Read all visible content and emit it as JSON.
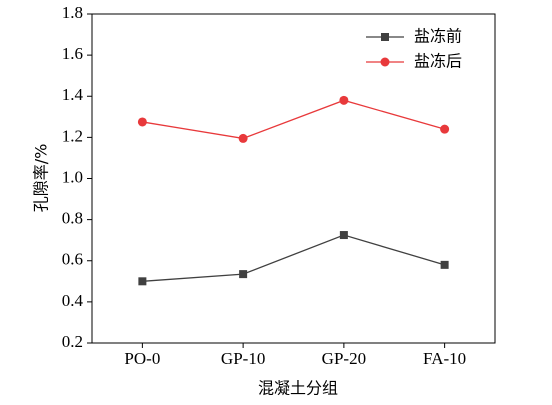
{
  "chart_data": {
    "type": "line",
    "x_label": "混凝土分组",
    "y_label": "孔隙率/%",
    "categories": [
      "PO-0",
      "GP-10",
      "GP-20",
      "FA-10"
    ],
    "series": [
      {
        "name": "盐冻前",
        "color": "#404040",
        "marker": "square",
        "values": [
          0.5,
          0.535,
          0.725,
          0.58
        ]
      },
      {
        "name": "盐冻后",
        "color": "#e8393b",
        "marker": "circle",
        "values": [
          1.275,
          1.195,
          1.38,
          1.24
        ]
      }
    ],
    "ylim": [
      0.2,
      1.8
    ],
    "yticks": [
      0.2,
      0.4,
      0.6,
      0.8,
      {
        "value": 1,
        "label": "1.0"
      },
      1.2,
      1.4,
      1.6,
      1.8
    ],
    "legend": "upper right"
  }
}
